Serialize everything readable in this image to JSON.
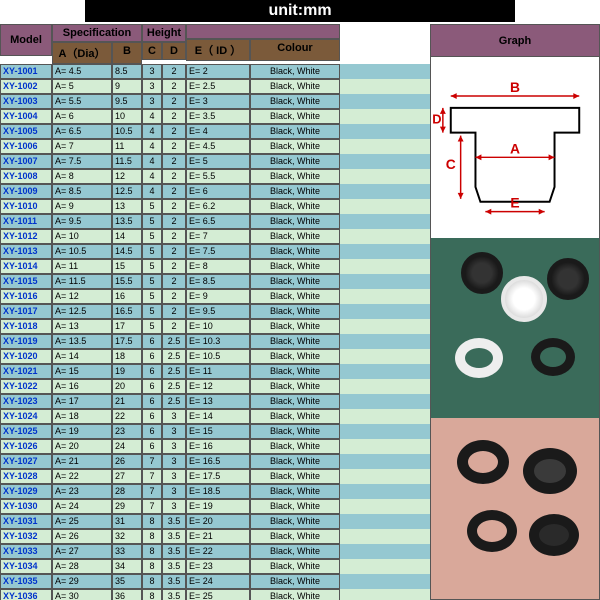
{
  "unit_label": "unit:mm",
  "headers": {
    "model": "Model",
    "specification": "Specification",
    "height": "Height",
    "a": "A（Dia）",
    "b": "B",
    "c": "C",
    "d": "D",
    "e": "E（ ID ）",
    "colour": "Colour",
    "graph": "Graph"
  },
  "colours": {
    "header_model": "#8b5a7a",
    "header_spec": "#8b5a7a",
    "header_height": "#8b5a7a",
    "header_graph": "#8b5a7a",
    "header_sub": "#7b5a3a",
    "row_odd": "#95c8d1",
    "row_even": "#d4edd4",
    "model_text": "#0033cc",
    "dim_arrow": "#cc0000",
    "photo1_bg": "#3a6b5a",
    "photo2_bg": "#d9a89a"
  },
  "diagram_labels": {
    "A": "A",
    "B": "B",
    "C": "C",
    "D": "D",
    "E": "E"
  },
  "rows": [
    {
      "model": "XY-1001",
      "a": "A= 4.5",
      "b": "8.5",
      "c": "3",
      "d": "2",
      "e": "E= 2",
      "colour": "Black, White"
    },
    {
      "model": "XY-1002",
      "a": "A= 5",
      "b": "9",
      "c": "3",
      "d": "2",
      "e": "E= 2.5",
      "colour": "Black, White"
    },
    {
      "model": "XY-1003",
      "a": "A= 5.5",
      "b": "9.5",
      "c": "3",
      "d": "2",
      "e": "E= 3",
      "colour": "Black, White"
    },
    {
      "model": "XY-1004",
      "a": "A= 6",
      "b": "10",
      "c": "4",
      "d": "2",
      "e": "E= 3.5",
      "colour": "Black, White"
    },
    {
      "model": "XY-1005",
      "a": "A= 6.5",
      "b": "10.5",
      "c": "4",
      "d": "2",
      "e": "E= 4",
      "colour": "Black, White"
    },
    {
      "model": "XY-1006",
      "a": "A= 7",
      "b": "11",
      "c": "4",
      "d": "2",
      "e": "E= 4.5",
      "colour": "Black, White"
    },
    {
      "model": "XY-1007",
      "a": "A= 7.5",
      "b": "11.5",
      "c": "4",
      "d": "2",
      "e": "E= 5",
      "colour": "Black, White"
    },
    {
      "model": "XY-1008",
      "a": "A= 8",
      "b": "12",
      "c": "4",
      "d": "2",
      "e": "E= 5.5",
      "colour": "Black, White"
    },
    {
      "model": "XY-1009",
      "a": "A= 8.5",
      "b": "12.5",
      "c": "4",
      "d": "2",
      "e": "E= 6",
      "colour": "Black, White"
    },
    {
      "model": "XY-1010",
      "a": "A= 9",
      "b": "13",
      "c": "5",
      "d": "2",
      "e": "E= 6.2",
      "colour": "Black, White"
    },
    {
      "model": "XY-1011",
      "a": "A= 9.5",
      "b": "13.5",
      "c": "5",
      "d": "2",
      "e": "E= 6.5",
      "colour": "Black, White"
    },
    {
      "model": "XY-1012",
      "a": "A= 10",
      "b": "14",
      "c": "5",
      "d": "2",
      "e": "E= 7",
      "colour": "Black, White"
    },
    {
      "model": "XY-1013",
      "a": "A= 10.5",
      "b": "14.5",
      "c": "5",
      "d": "2",
      "e": "E= 7.5",
      "colour": "Black, White"
    },
    {
      "model": "XY-1014",
      "a": "A= 11",
      "b": "15",
      "c": "5",
      "d": "2",
      "e": "E= 8",
      "colour": "Black, White"
    },
    {
      "model": "XY-1015",
      "a": "A= 11.5",
      "b": "15.5",
      "c": "5",
      "d": "2",
      "e": "E= 8.5",
      "colour": "Black, White"
    },
    {
      "model": "XY-1016",
      "a": "A= 12",
      "b": "16",
      "c": "5",
      "d": "2",
      "e": "E= 9",
      "colour": "Black, White"
    },
    {
      "model": "XY-1017",
      "a": "A= 12.5",
      "b": "16.5",
      "c": "5",
      "d": "2",
      "e": "E= 9.5",
      "colour": "Black, White"
    },
    {
      "model": "XY-1018",
      "a": "A= 13",
      "b": "17",
      "c": "5",
      "d": "2",
      "e": "E= 10",
      "colour": "Black, White"
    },
    {
      "model": "XY-1019",
      "a": "A= 13.5",
      "b": "17.5",
      "c": "6",
      "d": "2.5",
      "e": "E= 10.3",
      "colour": "Black, White"
    },
    {
      "model": "XY-1020",
      "a": "A= 14",
      "b": "18",
      "c": "6",
      "d": "2.5",
      "e": "E= 10.5",
      "colour": "Black, White"
    },
    {
      "model": "XY-1021",
      "a": "A= 15",
      "b": "19",
      "c": "6",
      "d": "2.5",
      "e": "E= 11",
      "colour": "Black, White"
    },
    {
      "model": "XY-1022",
      "a": "A= 16",
      "b": "20",
      "c": "6",
      "d": "2.5",
      "e": "E= 12",
      "colour": "Black, White"
    },
    {
      "model": "XY-1023",
      "a": "A= 17",
      "b": "21",
      "c": "6",
      "d": "2.5",
      "e": "E= 13",
      "colour": "Black, White"
    },
    {
      "model": "XY-1024",
      "a": "A= 18",
      "b": "22",
      "c": "6",
      "d": "3",
      "e": "E= 14",
      "colour": "Black, White"
    },
    {
      "model": "XY-1025",
      "a": "A= 19",
      "b": "23",
      "c": "6",
      "d": "3",
      "e": "E= 15",
      "colour": "Black, White"
    },
    {
      "model": "XY-1026",
      "a": "A= 20",
      "b": "24",
      "c": "6",
      "d": "3",
      "e": "E= 16",
      "colour": "Black, White"
    },
    {
      "model": "XY-1027",
      "a": "A= 21",
      "b": "26",
      "c": "7",
      "d": "3",
      "e": "E= 16.5",
      "colour": "Black, White"
    },
    {
      "model": "XY-1028",
      "a": "A= 22",
      "b": "27",
      "c": "7",
      "d": "3",
      "e": "E= 17.5",
      "colour": "Black, White"
    },
    {
      "model": "XY-1029",
      "a": "A= 23",
      "b": "28",
      "c": "7",
      "d": "3",
      "e": "E= 18.5",
      "colour": "Black, White"
    },
    {
      "model": "XY-1030",
      "a": "A= 24",
      "b": "29",
      "c": "7",
      "d": "3",
      "e": "E= 19",
      "colour": "Black, White"
    },
    {
      "model": "XY-1031",
      "a": "A= 25",
      "b": "31",
      "c": "8",
      "d": "3.5",
      "e": "E= 20",
      "colour": "Black, White"
    },
    {
      "model": "XY-1032",
      "a": "A= 26",
      "b": "32",
      "c": "8",
      "d": "3.5",
      "e": "E= 21",
      "colour": "Black, White"
    },
    {
      "model": "XY-1033",
      "a": "A= 27",
      "b": "33",
      "c": "8",
      "d": "3.5",
      "e": "E= 22",
      "colour": "Black, White"
    },
    {
      "model": "XY-1034",
      "a": "A= 28",
      "b": "34",
      "c": "8",
      "d": "3.5",
      "e": "E= 23",
      "colour": "Black, White"
    },
    {
      "model": "XY-1035",
      "a": "A= 29",
      "b": "35",
      "c": "8",
      "d": "3.5",
      "e": "E= 24",
      "colour": "Black, White"
    },
    {
      "model": "XY-1036",
      "a": "A= 30",
      "b": "36",
      "c": "8",
      "d": "3.5",
      "e": "E= 25",
      "colour": "Black, White"
    }
  ]
}
